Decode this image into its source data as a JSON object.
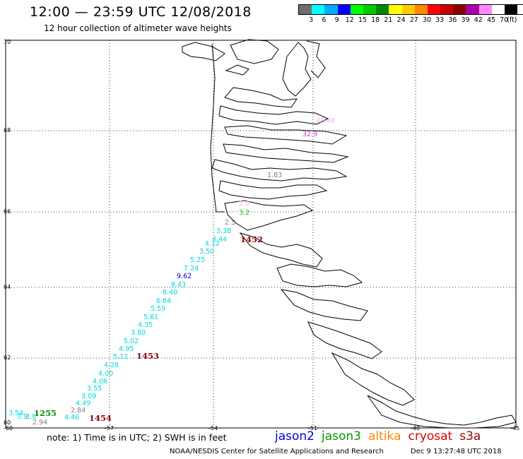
{
  "header": {
    "title": "12:00 — 23:59 UTC 12/08/2018",
    "subtitle": "12 hour collection of altimeter wave heights"
  },
  "legend": {
    "colors": [
      "#6e6e6e",
      "#00ffff",
      "#00aaff",
      "#0000ff",
      "#00ff00",
      "#00cc00",
      "#008800",
      "#ffff00",
      "#ffcc00",
      "#ff8800",
      "#ff0000",
      "#cc0000",
      "#880000",
      "#aa00aa",
      "#ff88ff",
      "#ffffff",
      "#000000"
    ],
    "labels": [
      "3",
      "6",
      "9",
      "12",
      "15",
      "18",
      "21",
      "24",
      "27",
      "30",
      "33",
      "36",
      "39",
      "42",
      "45",
      "70",
      "(ft)"
    ]
  },
  "axes": {
    "lat_labels": [
      "70",
      "68",
      "66",
      "64",
      "62",
      "60"
    ],
    "lon_labels": [
      "-57",
      "-54",
      "-51",
      "-48",
      "-45"
    ],
    "corner_label": "-60",
    "grid": "dotted"
  },
  "observations": [
    {
      "text": "46.46",
      "color": "#ffaaff"
    },
    {
      "text": "32.9",
      "color": "#cc44cc"
    },
    {
      "text": "1.83",
      "color": "#808080"
    },
    {
      "text": "2.0",
      "color": "#ffaaff"
    },
    {
      "text": "2.5",
      "color": "#808080"
    },
    {
      "text": "3.2",
      "color": "#00cc00"
    },
    {
      "text": "3.38",
      "color": "#00d8d8"
    },
    {
      "text": "4.44",
      "color": "#00d8d8"
    },
    {
      "text": "4.12",
      "color": "#00d8d8"
    },
    {
      "text": "3.50",
      "color": "#00d8d8"
    },
    {
      "text": "5.25",
      "color": "#00d8d8"
    },
    {
      "text": "7.24",
      "color": "#00d8d8"
    },
    {
      "text": "9.62",
      "color": "#0000cc"
    },
    {
      "text": "8.43",
      "color": "#00d8d8"
    },
    {
      "text": "8.40",
      "color": "#00d8d8"
    },
    {
      "text": "6.64",
      "color": "#00d8d8"
    },
    {
      "text": "5.59",
      "color": "#00d8d8"
    },
    {
      "text": "5.61",
      "color": "#00d8d8"
    },
    {
      "text": "4.35",
      "color": "#00d8d8"
    },
    {
      "text": "3.80",
      "color": "#00d8d8"
    },
    {
      "text": "5.02",
      "color": "#00d8d8"
    },
    {
      "text": "4.95",
      "color": "#00d8d8"
    },
    {
      "text": "5.12",
      "color": "#00d8d8"
    },
    {
      "text": "4.28",
      "color": "#00d8d8"
    },
    {
      "text": "4.00",
      "color": "#00d8d8"
    },
    {
      "text": "4.06",
      "color": "#00d8d8"
    },
    {
      "text": "3.55",
      "color": "#00d8d8"
    },
    {
      "text": "3.09",
      "color": "#00d8d8"
    },
    {
      "text": "4.49",
      "color": "#00d8d8"
    },
    {
      "text": "2.84",
      "color": "#808080"
    },
    {
      "text": "4.46",
      "color": "#00d8d8"
    },
    {
      "text": "3.54",
      "color": "#00d8d8"
    },
    {
      "text": "3.9",
      "color": "#00d8d8"
    },
    {
      "text": "3.8",
      "color": "#00d8d8"
    },
    {
      "text": "2.94",
      "color": "#808080"
    }
  ],
  "time_labels": [
    {
      "text": "1452",
      "color": "#880000"
    },
    {
      "text": "1453",
      "color": "#880000"
    },
    {
      "text": "1454",
      "color": "#880000"
    },
    {
      "text": "1255",
      "color": "#008800"
    }
  ],
  "footer": {
    "note": "note:  1) Time is in UTC;  2) SWH is in feet",
    "satellites": [
      {
        "name": "jason2",
        "color": "#0000dd"
      },
      {
        "name": "jason3",
        "color": "#009900"
      },
      {
        "name": "altika",
        "color": "#ff8800"
      },
      {
        "name": "cryosat",
        "color": "#dd0000"
      },
      {
        "name": "s3a",
        "color": "#990000"
      }
    ],
    "credit": "NOAA/NESDIS Center for Satellite Applications and Research",
    "timestamp": "Dec  9 13:27:48 UTC 2018"
  }
}
